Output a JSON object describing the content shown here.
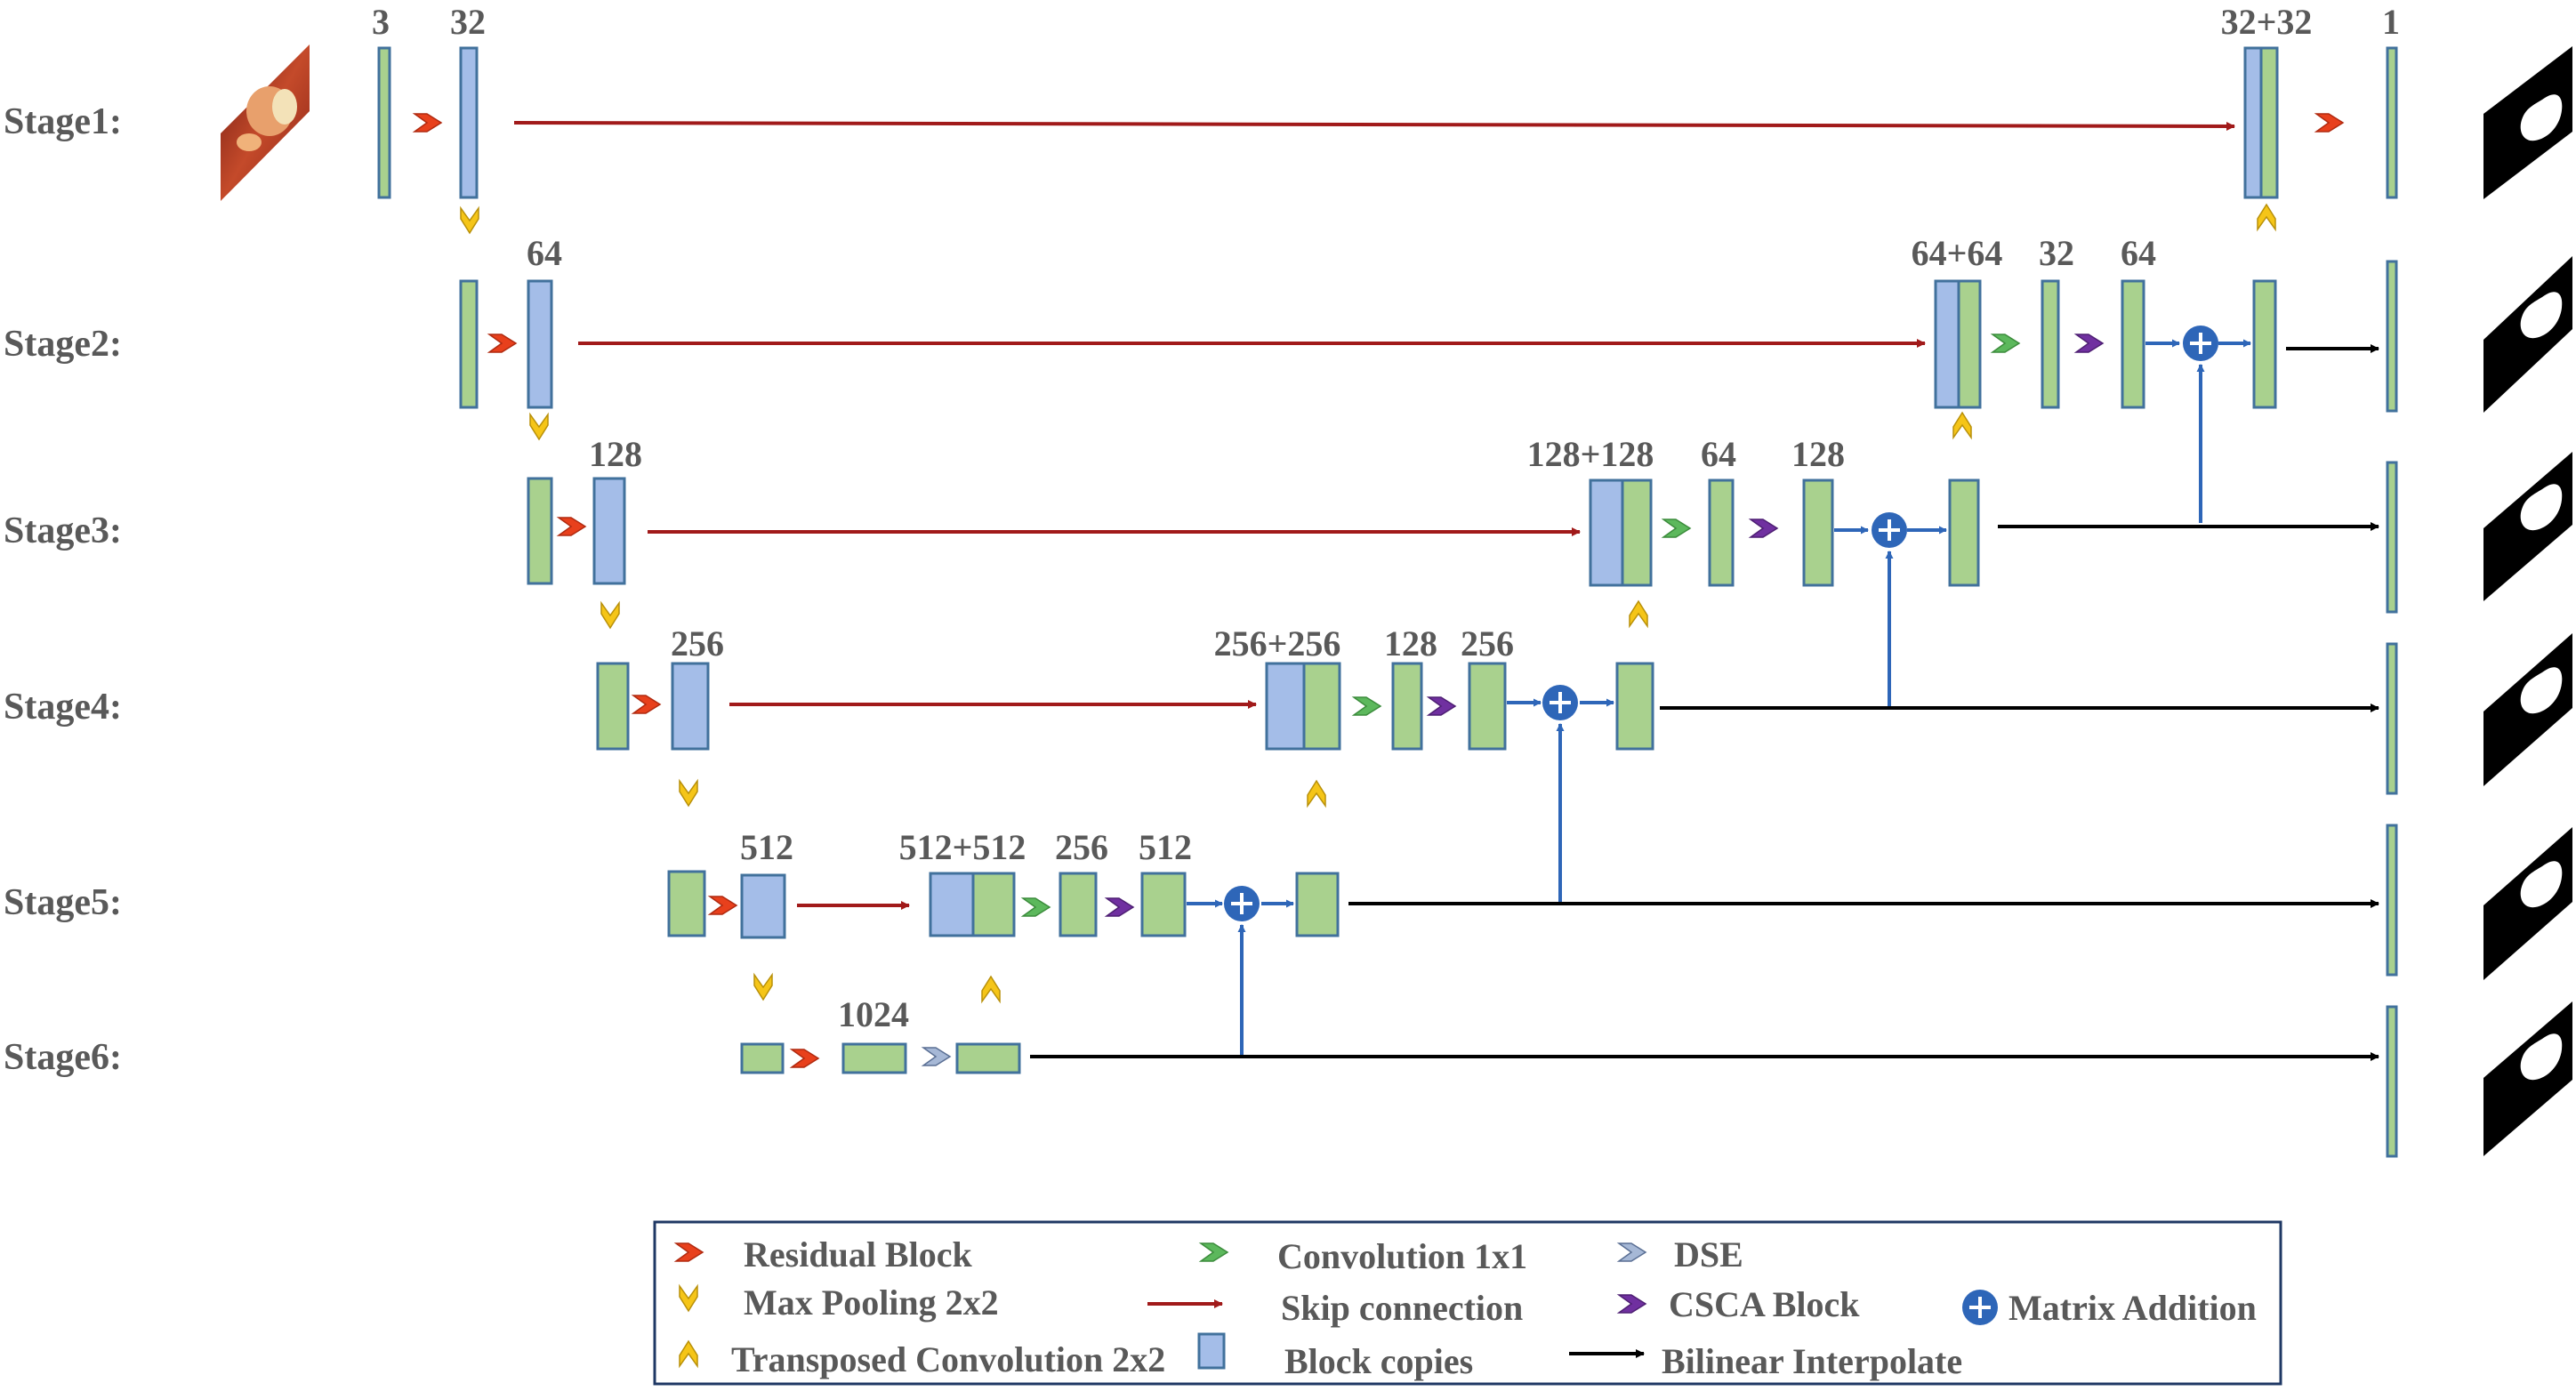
{
  "stages": [
    "Stage1:",
    "Stage2:",
    "Stage3:",
    "Stage4:",
    "Stage5:",
    "Stage6:"
  ],
  "numbers": {
    "s1_in": "3",
    "s1_enc": "32",
    "s1_cat": "32+32",
    "s1_out": "1",
    "s2_enc": "64",
    "s2_cat": "64+64",
    "s2_c1": "32",
    "s2_c2": "64",
    "s3_enc": "128",
    "s3_cat": "128+128",
    "s3_c1": "64",
    "s3_c2": "128",
    "s4_enc": "256",
    "s4_cat": "256+256",
    "s4_c1": "128",
    "s4_c2": "256",
    "s5_enc": "512",
    "s5_cat": "512+512",
    "s5_c1": "256",
    "s5_c2": "512",
    "s6_enc": "1024"
  },
  "legend": {
    "residual": "Residual Block",
    "maxpool": "Max Pooling 2x2",
    "transposed": "Transposed Convolution 2x2",
    "conv1x1": "Convolution 1x1",
    "skip": "Skip connection",
    "copies": "Block copies",
    "dse": "DSE",
    "csca": "CSCA Block",
    "bilinear": "Bilinear Interpolate",
    "addition": "Matrix Addition"
  },
  "colors": {
    "green_block": "#a9d18e",
    "blue_block": "#a4bde8",
    "block_border": "#41719c",
    "residual": "#e8401c",
    "maxpool": "#f5c518",
    "conv1x1": "#5cb85c",
    "csca": "#7030a0",
    "dse": "#a6b8d6",
    "skip": "#a11a1a",
    "addition": "#2e66b8",
    "bilinear": "#000000"
  },
  "icons": [
    "chevron-icon",
    "plus-circle-icon",
    "arrow-icon",
    "input-image-icon",
    "mask-icon"
  ]
}
